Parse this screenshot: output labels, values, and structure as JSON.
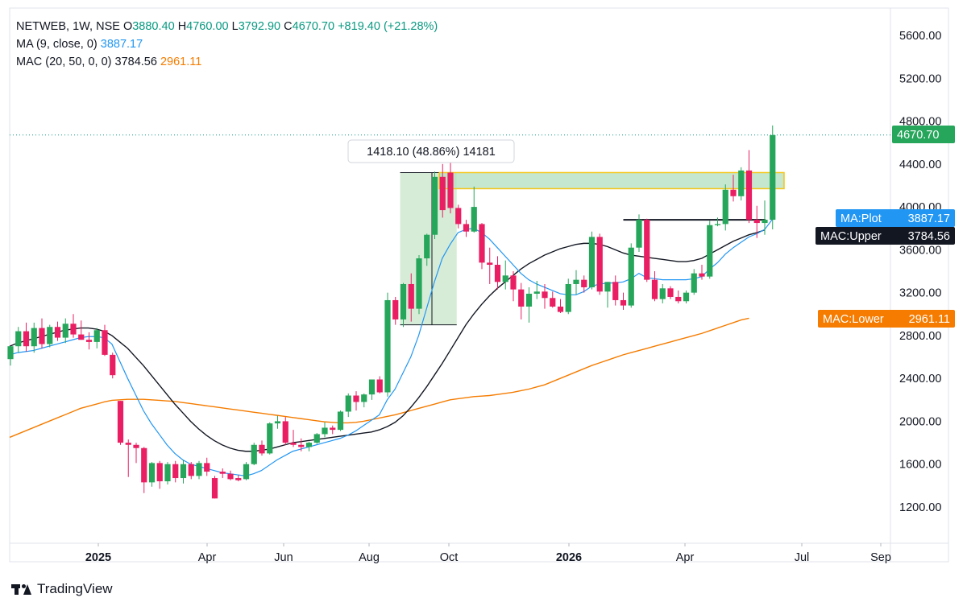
{
  "legend": {
    "symbol": "NETWEB, 1W, NSE",
    "open_label": "O",
    "open": "3880.40",
    "high_label": "H",
    "high": "4760.00",
    "low_label": "L",
    "low": "3792.90",
    "close_label": "C",
    "close": "4670.70",
    "change": "+819.40 (+21.28%)",
    "ma_label": "MA (9, close, 0)",
    "ma_value": "3887.17",
    "mac_label": "MAC (20, 50, 0, 0)",
    "mac_upper": "3784.56",
    "mac_lower": "2961.11"
  },
  "branding": {
    "name": "TradingView"
  },
  "colors": {
    "up": "#089981",
    "up_fill": "#26a65b",
    "down": "#f23645",
    "down_fill": "#e91e63",
    "ma": "#2196f3",
    "mac_upper": "#131722",
    "mac_lower": "#f57c00",
    "zone_fill": "#b7e1c3",
    "zone_border": "#f5c518",
    "measure_fill": "#c8e6c9"
  },
  "chart_data": {
    "type": "candlestick",
    "timeframe": "1W",
    "price_axis": {
      "ticks": [
        "5600.00",
        "5200.00",
        "4800.00",
        "4400.00",
        "4000.00",
        "3600.00",
        "3200.00",
        "2800.00",
        "2400.00",
        "2000.00",
        "1600.00",
        "1200.00"
      ],
      "range": [
        800,
        5960
      ]
    },
    "time_axis": {
      "labels": [
        {
          "text": "2025",
          "bold": true
        },
        {
          "text": "Apr"
        },
        {
          "text": "Jun"
        },
        {
          "text": "Aug"
        },
        {
          "text": "Oct"
        },
        {
          "text": "2026",
          "bold": true
        },
        {
          "text": "Apr"
        },
        {
          "text": "Jul"
        },
        {
          "text": "Sep"
        }
      ]
    },
    "price_labels": [
      {
        "text": "4670.70",
        "kind": "last-price"
      },
      {
        "text": "MA:Plot",
        "value_text": "3887.17",
        "kind": "ma"
      },
      {
        "text": "MAC:Upper",
        "value_text": "3784.56",
        "kind": "mac-upper"
      },
      {
        "text": "MAC:Lower",
        "value_text": "2961.11",
        "kind": "mac-lower"
      }
    ],
    "measure_annotation": {
      "text": "1418.10 (48.86%) 14181",
      "from": 2900,
      "to": 4320
    },
    "resistance_zone": {
      "from": 4170,
      "to": 4320
    },
    "neckline": {
      "value": 3880
    },
    "candles": [
      {
        "o": 2580,
        "h": 2700,
        "l": 2520,
        "c": 2700
      },
      {
        "o": 2700,
        "h": 2880,
        "l": 2640,
        "c": 2840
      },
      {
        "o": 2840,
        "h": 2920,
        "l": 2650,
        "c": 2700
      },
      {
        "o": 2700,
        "h": 2920,
        "l": 2640,
        "c": 2870
      },
      {
        "o": 2870,
        "h": 2960,
        "l": 2680,
        "c": 2720
      },
      {
        "o": 2720,
        "h": 2900,
        "l": 2690,
        "c": 2880
      },
      {
        "o": 2880,
        "h": 2930,
        "l": 2750,
        "c": 2780
      },
      {
        "o": 2780,
        "h": 2960,
        "l": 2730,
        "c": 2910
      },
      {
        "o": 2910,
        "h": 3000,
        "l": 2780,
        "c": 2810
      },
      {
        "o": 2810,
        "h": 2940,
        "l": 2760,
        "c": 2760
      },
      {
        "o": 2760,
        "h": 2830,
        "l": 2670,
        "c": 2740
      },
      {
        "o": 2740,
        "h": 2870,
        "l": 2680,
        "c": 2850
      },
      {
        "o": 2850,
        "h": 2900,
        "l": 2610,
        "c": 2620
      },
      {
        "o": 2620,
        "h": 2640,
        "l": 2400,
        "c": 2430
      },
      {
        "o": 2190,
        "h": 2190,
        "l": 1780,
        "c": 1800
      },
      {
        "o": 1800,
        "h": 1830,
        "l": 1480,
        "c": 1780
      },
      {
        "o": 1780,
        "h": 1800,
        "l": 1610,
        "c": 1750
      },
      {
        "o": 1750,
        "h": 1760,
        "l": 1330,
        "c": 1430
      },
      {
        "o": 1430,
        "h": 1620,
        "l": 1390,
        "c": 1610
      },
      {
        "o": 1610,
        "h": 1630,
        "l": 1370,
        "c": 1440
      },
      {
        "o": 1440,
        "h": 1620,
        "l": 1410,
        "c": 1600
      },
      {
        "o": 1600,
        "h": 1630,
        "l": 1430,
        "c": 1470
      },
      {
        "o": 1470,
        "h": 1640,
        "l": 1420,
        "c": 1600
      },
      {
        "o": 1600,
        "h": 1620,
        "l": 1460,
        "c": 1490
      },
      {
        "o": 1490,
        "h": 1630,
        "l": 1460,
        "c": 1610
      },
      {
        "o": 1610,
        "h": 1660,
        "l": 1490,
        "c": 1530
      },
      {
        "o": 1470,
        "h": 1490,
        "l": 1280,
        "c": 1280
      },
      {
        "o": 1530,
        "h": 1560,
        "l": 1470,
        "c": 1510
      },
      {
        "o": 1510,
        "h": 1540,
        "l": 1450,
        "c": 1460
      },
      {
        "o": 1470,
        "h": 1500,
        "l": 1440,
        "c": 1450
      },
      {
        "o": 1460,
        "h": 1620,
        "l": 1450,
        "c": 1600
      },
      {
        "o": 1600,
        "h": 1800,
        "l": 1590,
        "c": 1780
      },
      {
        "o": 1780,
        "h": 1820,
        "l": 1680,
        "c": 1700
      },
      {
        "o": 1700,
        "h": 1990,
        "l": 1690,
        "c": 1980
      },
      {
        "o": 1980,
        "h": 2050,
        "l": 1930,
        "c": 2000
      },
      {
        "o": 2000,
        "h": 2040,
        "l": 1780,
        "c": 1800
      },
      {
        "o": 1800,
        "h": 1920,
        "l": 1760,
        "c": 1780
      },
      {
        "o": 1780,
        "h": 1840,
        "l": 1720,
        "c": 1760
      },
      {
        "o": 1760,
        "h": 1810,
        "l": 1720,
        "c": 1800
      },
      {
        "o": 1800,
        "h": 1890,
        "l": 1790,
        "c": 1880
      },
      {
        "o": 1880,
        "h": 1990,
        "l": 1850,
        "c": 1940
      },
      {
        "o": 1940,
        "h": 1960,
        "l": 1880,
        "c": 1920
      },
      {
        "o": 1920,
        "h": 2100,
        "l": 1910,
        "c": 2090
      },
      {
        "o": 2090,
        "h": 2260,
        "l": 2040,
        "c": 2240
      },
      {
        "o": 2240,
        "h": 2280,
        "l": 2100,
        "c": 2180
      },
      {
        "o": 2180,
        "h": 2260,
        "l": 2130,
        "c": 2250
      },
      {
        "o": 2250,
        "h": 2380,
        "l": 2200,
        "c": 2390
      },
      {
        "o": 2390,
        "h": 2420,
        "l": 2260,
        "c": 2270
      },
      {
        "o": 2270,
        "h": 3200,
        "l": 2230,
        "c": 3130
      },
      {
        "o": 3130,
        "h": 3160,
        "l": 2900,
        "c": 2950
      },
      {
        "o": 2950,
        "h": 3290,
        "l": 2880,
        "c": 3280
      },
      {
        "o": 3280,
        "h": 3380,
        "l": 2930,
        "c": 3050
      },
      {
        "o": 3050,
        "h": 3550,
        "l": 3000,
        "c": 3520
      },
      {
        "o": 3520,
        "h": 3750,
        "l": 3450,
        "c": 3740
      },
      {
        "o": 3740,
        "h": 4330,
        "l": 3700,
        "c": 4280
      },
      {
        "o": 4280,
        "h": 4400,
        "l": 3900,
        "c": 3970
      },
      {
        "o": 4320,
        "h": 4520,
        "l": 3940,
        "c": 3990
      },
      {
        "o": 3990,
        "h": 4020,
        "l": 3800,
        "c": 3840
      },
      {
        "o": 3840,
        "h": 3880,
        "l": 3720,
        "c": 3770
      },
      {
        "o": 3770,
        "h": 4190,
        "l": 3760,
        "c": 4000
      },
      {
        "o": 3840,
        "h": 3850,
        "l": 3420,
        "c": 3480
      },
      {
        "o": 3480,
        "h": 3620,
        "l": 3280,
        "c": 3460
      },
      {
        "o": 3460,
        "h": 3540,
        "l": 3230,
        "c": 3300
      },
      {
        "o": 3300,
        "h": 3500,
        "l": 3230,
        "c": 3360
      },
      {
        "o": 3360,
        "h": 3400,
        "l": 3120,
        "c": 3230
      },
      {
        "o": 3230,
        "h": 3290,
        "l": 2950,
        "c": 3070
      },
      {
        "o": 3070,
        "h": 3250,
        "l": 2920,
        "c": 3190
      },
      {
        "o": 3190,
        "h": 3310,
        "l": 3140,
        "c": 3210
      },
      {
        "o": 3210,
        "h": 3280,
        "l": 3050,
        "c": 3150
      },
      {
        "o": 3150,
        "h": 3210,
        "l": 3060,
        "c": 3070
      },
      {
        "o": 3070,
        "h": 3140,
        "l": 3010,
        "c": 3020
      },
      {
        "o": 3020,
        "h": 3330,
        "l": 3000,
        "c": 3280
      },
      {
        "o": 3280,
        "h": 3410,
        "l": 3180,
        "c": 3320
      },
      {
        "o": 3320,
        "h": 3360,
        "l": 3200,
        "c": 3250
      },
      {
        "o": 3250,
        "h": 3770,
        "l": 3230,
        "c": 3720
      },
      {
        "o": 3720,
        "h": 3750,
        "l": 3180,
        "c": 3210
      },
      {
        "o": 3210,
        "h": 3300,
        "l": 3060,
        "c": 3300
      },
      {
        "o": 3300,
        "h": 3360,
        "l": 3080,
        "c": 3130
      },
      {
        "o": 3130,
        "h": 3200,
        "l": 3040,
        "c": 3080
      },
      {
        "o": 3080,
        "h": 3660,
        "l": 3060,
        "c": 3620
      },
      {
        "o": 3620,
        "h": 3930,
        "l": 3580,
        "c": 3880
      },
      {
        "o": 3880,
        "h": 3890,
        "l": 3300,
        "c": 3320
      },
      {
        "o": 3320,
        "h": 3400,
        "l": 3120,
        "c": 3140
      },
      {
        "o": 3140,
        "h": 3280,
        "l": 3100,
        "c": 3240
      },
      {
        "o": 3240,
        "h": 3260,
        "l": 3140,
        "c": 3160
      },
      {
        "o": 3160,
        "h": 3220,
        "l": 3100,
        "c": 3120
      },
      {
        "o": 3120,
        "h": 3220,
        "l": 3100,
        "c": 3200
      },
      {
        "o": 3200,
        "h": 3420,
        "l": 3180,
        "c": 3380
      },
      {
        "o": 3380,
        "h": 3460,
        "l": 3320,
        "c": 3350
      },
      {
        "o": 3350,
        "h": 3870,
        "l": 3330,
        "c": 3830
      },
      {
        "o": 3830,
        "h": 3900,
        "l": 3820,
        "c": 3840
      },
      {
        "o": 3840,
        "h": 4210,
        "l": 3780,
        "c": 4160
      },
      {
        "o": 4160,
        "h": 4300,
        "l": 4050,
        "c": 4100
      },
      {
        "o": 4100,
        "h": 4370,
        "l": 4060,
        "c": 4340
      },
      {
        "o": 4340,
        "h": 4530,
        "l": 3850,
        "c": 3880
      },
      {
        "o": 3880,
        "h": 4010,
        "l": 3710,
        "c": 3850
      },
      {
        "o": 3850,
        "h": 4060,
        "l": 3740,
        "c": 3880
      },
      {
        "o": 3880,
        "h": 4760,
        "l": 3790,
        "c": 4670
      }
    ],
    "ma_9": [
      2620,
      2640,
      2650,
      2660,
      2680,
      2700,
      2720,
      2740,
      2760,
      2780,
      2790,
      2790,
      2780,
      2720,
      2560,
      2400,
      2250,
      2100,
      1980,
      1880,
      1780,
      1700,
      1640,
      1600,
      1580,
      1560,
      1540,
      1520,
      1510,
      1500,
      1490,
      1510,
      1540,
      1590,
      1640,
      1680,
      1720,
      1740,
      1760,
      1780,
      1800,
      1820,
      1840,
      1870,
      1910,
      1960,
      2010,
      2060,
      2200,
      2300,
      2450,
      2600,
      2800,
      3050,
      3300,
      3520,
      3650,
      3760,
      3790,
      3800,
      3760,
      3700,
      3620,
      3540,
      3460,
      3380,
      3320,
      3280,
      3250,
      3220,
      3190,
      3180,
      3180,
      3210,
      3260,
      3280,
      3290,
      3290,
      3300,
      3330,
      3380,
      3340,
      3330,
      3320,
      3320,
      3320,
      3320,
      3330,
      3350,
      3420,
      3480,
      3560,
      3620,
      3670,
      3720,
      3750,
      3790,
      3887
    ],
    "mac_upper": [
      2700,
      2730,
      2750,
      2770,
      2790,
      2810,
      2830,
      2850,
      2860,
      2870,
      2870,
      2860,
      2840,
      2800,
      2740,
      2680,
      2600,
      2520,
      2430,
      2340,
      2250,
      2160,
      2080,
      2000,
      1930,
      1870,
      1820,
      1780,
      1750,
      1730,
      1720,
      1720,
      1730,
      1740,
      1760,
      1780,
      1800,
      1810,
      1820,
      1830,
      1840,
      1850,
      1860,
      1870,
      1880,
      1890,
      1900,
      1920,
      1950,
      1990,
      2050,
      2130,
      2220,
      2320,
      2430,
      2540,
      2660,
      2780,
      2900,
      3000,
      3090,
      3170,
      3240,
      3300,
      3360,
      3420,
      3470,
      3510,
      3550,
      3580,
      3610,
      3630,
      3650,
      3660,
      3660,
      3650,
      3630,
      3600,
      3570,
      3550,
      3540,
      3530,
      3520,
      3510,
      3500,
      3490,
      3490,
      3500,
      3520,
      3560,
      3600,
      3640,
      3680,
      3710,
      3740,
      3760,
      3785
    ],
    "mac_lower": [
      1850,
      1880,
      1910,
      1940,
      1970,
      2000,
      2030,
      2060,
      2090,
      2120,
      2140,
      2160,
      2180,
      2195,
      2200,
      2205,
      2205,
      2205,
      2200,
      2195,
      2190,
      2185,
      2175,
      2165,
      2155,
      2145,
      2135,
      2125,
      2115,
      2105,
      2095,
      2085,
      2075,
      2065,
      2055,
      2045,
      2035,
      2025,
      2015,
      2005,
      1995,
      1990,
      1985,
      1985,
      1990,
      2000,
      2015,
      2030,
      2045,
      2060,
      2080,
      2100,
      2120,
      2140,
      2160,
      2180,
      2200,
      2210,
      2220,
      2230,
      2235,
      2240,
      2250,
      2260,
      2270,
      2285,
      2300,
      2320,
      2340,
      2370,
      2400,
      2430,
      2460,
      2490,
      2520,
      2545,
      2570,
      2595,
      2620,
      2640,
      2660,
      2680,
      2700,
      2720,
      2740,
      2760,
      2780,
      2800,
      2820,
      2845,
      2870,
      2895,
      2920,
      2945,
      2961
    ]
  }
}
